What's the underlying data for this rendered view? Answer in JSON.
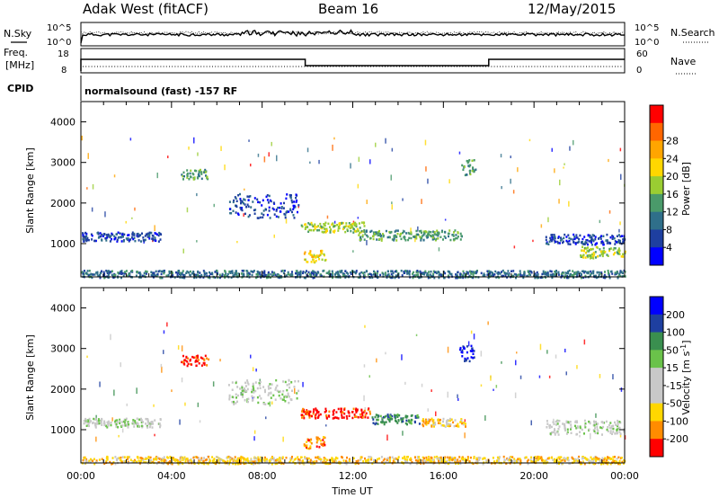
{
  "header": {
    "radar": "Adak West (fitACF)",
    "beam": "Beam 16",
    "date": "12/May/2015"
  },
  "panel_labels": {
    "nsky": "N.Sky",
    "nsearch": "N.Search",
    "freq_line1": "Freq.",
    "freq_line2": "[MHz]",
    "nave": "Nave",
    "cpid": "CPID",
    "cpid_value": "normalsound (fast) -157 RF"
  },
  "colors": {
    "power_scale": [
      "#0000ff",
      "#1e3fa0",
      "#2f6f8a",
      "#4a9a6a",
      "#9acd32",
      "#ffd700",
      "#ffa500",
      "#ff6600",
      "#ff0000"
    ],
    "velocity_scale": [
      "#0000ff",
      "#1e3fa0",
      "#3a8f4f",
      "#6ac24a",
      "#c8c8c8",
      "#c8c8c8",
      "#ffd700",
      "#ff8c00",
      "#ff0000"
    ]
  },
  "chart_data": [
    {
      "type": "line",
      "name": "noise",
      "ylabel_left": "N.Sky",
      "ylabel_right": "N.Search",
      "left_ticks": [
        "10^5",
        "10^0"
      ],
      "right_ticks": [
        "10^5",
        "10^0"
      ],
      "x_range_hours": [
        0,
        24
      ]
    },
    {
      "type": "line",
      "name": "frequency-nave",
      "ylabel_left": "Freq. [MHz]",
      "ylabel_right": "Nave",
      "left_ticks": [
        "18",
        "8"
      ],
      "right_ticks": [
        "60",
        "0"
      ],
      "freq_segments": [
        {
          "x": [
            0.0,
            9.9
          ],
          "level": "high"
        },
        {
          "x": [
            9.9,
            18.0
          ],
          "level": "low"
        },
        {
          "x": [
            18.0,
            24.0
          ],
          "level": "high"
        }
      ]
    },
    {
      "type": "heatmap",
      "name": "power",
      "ylabel": "Slant Range [km]",
      "yticks": [
        1000,
        2000,
        3000,
        4000
      ],
      "ylim": [
        180,
        4500
      ],
      "colorbar_label": "Power [dB]",
      "colorbar_ticks": [
        "4",
        "8",
        "12",
        "16",
        "20",
        "24",
        "28"
      ],
      "features": [
        {
          "t": [
            0.0,
            3.5
          ],
          "r": [
            1080,
            1300
          ],
          "level": 1
        },
        {
          "t": [
            4.4,
            5.6
          ],
          "r": [
            2600,
            2850
          ],
          "level": 3
        },
        {
          "t": [
            6.5,
            9.6
          ],
          "r": [
            1650,
            2250
          ],
          "level": 1
        },
        {
          "t": [
            9.7,
            12.5
          ],
          "r": [
            1300,
            1550
          ],
          "level": 4
        },
        {
          "t": [
            9.8,
            10.8
          ],
          "r": [
            560,
            850
          ],
          "level": 5
        },
        {
          "t": [
            12.2,
            16.8
          ],
          "r": [
            1100,
            1350
          ],
          "level": 3
        },
        {
          "t": [
            16.7,
            17.4
          ],
          "r": [
            2700,
            3100
          ],
          "level": 3
        },
        {
          "t": [
            20.5,
            24.0
          ],
          "r": [
            1000,
            1250
          ],
          "level": 1
        },
        {
          "t": [
            22.0,
            24.0
          ],
          "r": [
            650,
            950
          ],
          "level": 4
        },
        {
          "t": [
            0.0,
            24.0
          ],
          "r": [
            180,
            360
          ],
          "level": 2
        }
      ]
    },
    {
      "type": "heatmap",
      "name": "velocity",
      "ylabel": "Slant Range [km]",
      "yticks": [
        1000,
        2000,
        3000,
        4000
      ],
      "ylim": [
        180,
        4500
      ],
      "xlabel": "Time UT",
      "xticks": [
        "00:00",
        "04:00",
        "08:00",
        "12:00",
        "16:00",
        "20:00",
        "00:00"
      ],
      "colorbar_label": "Velocity [m s^-1]",
      "colorbar_ticks": [
        "200",
        "100",
        "50",
        "15",
        "-15",
        "-50",
        "-100",
        "-200"
      ],
      "features": [
        {
          "t": [
            0.0,
            3.5
          ],
          "r": [
            1080,
            1300
          ],
          "level": 4
        },
        {
          "t": [
            4.4,
            5.6
          ],
          "r": [
            2600,
            2850
          ],
          "level": 8
        },
        {
          "t": [
            6.5,
            9.6
          ],
          "r": [
            1650,
            2250
          ],
          "level": 4
        },
        {
          "t": [
            9.7,
            12.8
          ],
          "r": [
            1300,
            1550
          ],
          "level": 8
        },
        {
          "t": [
            9.8,
            10.8
          ],
          "r": [
            560,
            850
          ],
          "level": 7
        },
        {
          "t": [
            12.8,
            15.0
          ],
          "r": [
            1150,
            1400
          ],
          "level": 2
        },
        {
          "t": [
            15.0,
            17.0
          ],
          "r": [
            1100,
            1300
          ],
          "level": 6
        },
        {
          "t": [
            16.7,
            17.4
          ],
          "r": [
            2700,
            3100
          ],
          "level": 0
        },
        {
          "t": [
            20.5,
            24.0
          ],
          "r": [
            900,
            1250
          ],
          "level": 4
        },
        {
          "t": [
            0.0,
            24.0
          ],
          "r": [
            180,
            360
          ],
          "level": 6
        }
      ]
    }
  ]
}
